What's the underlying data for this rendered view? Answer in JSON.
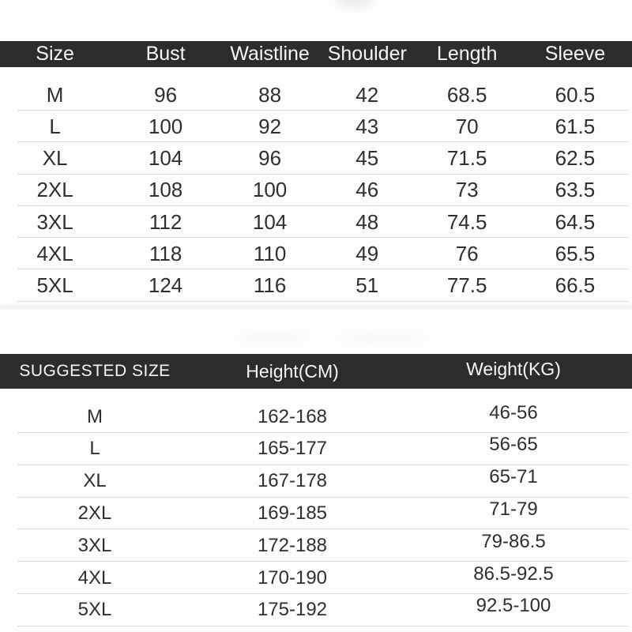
{
  "colors": {
    "header_bg": "#2c2c2c",
    "header_text": "#f7f7f7",
    "body_text": "#2f2f2f",
    "divider": "#dadada",
    "background": "#fdfdfd"
  },
  "size_chart": {
    "header": [
      "Size",
      "Bust",
      "Waistline",
      "Shoulder",
      "Length",
      "Sleeve"
    ],
    "rows": [
      [
        "M",
        "96",
        "88",
        "42",
        "68.5",
        "60.5"
      ],
      [
        "L",
        "100",
        "92",
        "43",
        "70",
        "61.5"
      ],
      [
        "XL",
        "104",
        "96",
        "45",
        "71.5",
        "62.5"
      ],
      [
        "2XL",
        "108",
        "100",
        "46",
        "73",
        "63.5"
      ],
      [
        "3XL",
        "112",
        "104",
        "48",
        "74.5",
        "64.5"
      ],
      [
        "4XL",
        "118",
        "110",
        "49",
        "76",
        "65.5"
      ],
      [
        "5XL",
        "124",
        "116",
        "51",
        "77.5",
        "66.5"
      ]
    ]
  },
  "suggested_chart": {
    "header": [
      "SUGGESTED SIZE",
      "Height(CM)",
      "Weight(KG)"
    ],
    "rows": [
      [
        "M",
        "162-168",
        "46-56"
      ],
      [
        "L",
        "165-177",
        "56-65"
      ],
      [
        "XL",
        "167-178",
        "65-71"
      ],
      [
        "2XL",
        "169-185",
        "71-79"
      ],
      [
        "3XL",
        "172-188",
        "79-86.5"
      ],
      [
        "4XL",
        "170-190",
        "86.5-92.5"
      ],
      [
        "5XL",
        "175-192",
        "92.5-100"
      ]
    ]
  }
}
